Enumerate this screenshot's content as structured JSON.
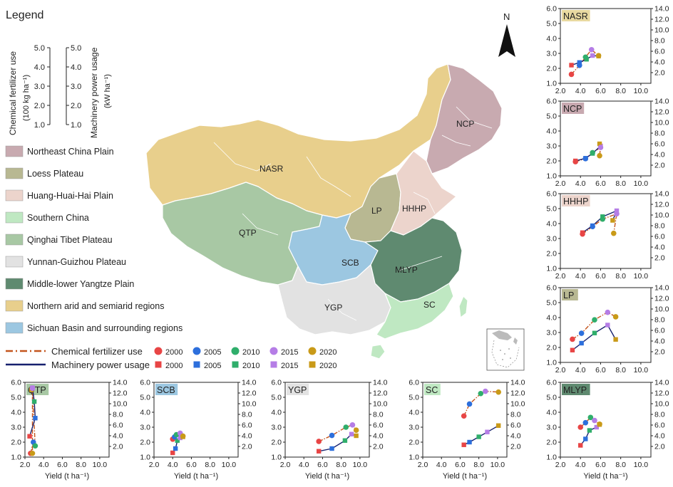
{
  "legend": {
    "title": "Legend",
    "fert_axis_label_1": "Chemical fertilizer use",
    "fert_axis_label_2": "(100 kg ha⁻¹)",
    "mach_axis_label_1": "Machinery power usage",
    "mach_axis_label_2": "(kW ha⁻¹)",
    "axis_ticks": [
      "5.0",
      "4.0",
      "3.0",
      "2.0",
      "1.0"
    ],
    "regions": [
      {
        "name": "Northeast China Plain",
        "color": "#c8aab0"
      },
      {
        "name": "Loess Plateau",
        "color": "#b8b892"
      },
      {
        "name": "Huang-Huai-Hai Plain",
        "color": "#ecd4cc"
      },
      {
        "name": "Southern China",
        "color": "#bfe8c2"
      },
      {
        "name": "Qinghai Tibet Plateau",
        "color": "#a8c8a4"
      },
      {
        "name": "Yunnan-Guizhou Plateau",
        "color": "#e2e2e2"
      },
      {
        "name": "Middle-lower Yangtze Plain",
        "color": "#5f8a70"
      },
      {
        "name": "Northern arid and semiarid regions",
        "color": "#e8cf8c"
      },
      {
        "name": "Sichuan Basin and surrounding regions",
        "color": "#9cc7e1"
      }
    ],
    "series_labels": {
      "fert": "Chemical fertilizer use",
      "mach": "Machinery power usage"
    },
    "years": [
      "2000",
      "2005",
      "2010",
      "2015",
      "2020"
    ],
    "year_colors": [
      "#e84545",
      "#2d6fdc",
      "#2fae6b",
      "#b57de6",
      "#c99a18"
    ],
    "fert_color": "#c4541c",
    "mach_color": "#16206e"
  },
  "map": {
    "north_label": "N",
    "region_labels": [
      "NASR",
      "NCP",
      "LP",
      "HHHP",
      "QTP",
      "SCB",
      "MLYP",
      "YGP",
      "SC"
    ]
  },
  "chart_data": [
    {
      "id": "NASR",
      "type": "line",
      "title": "NASR",
      "title_bg": "#e8d9a0",
      "xlim": [
        2.0,
        11.0
      ],
      "xticks": [
        "2.0",
        "4.0",
        "6.0",
        "8.0",
        "10.0"
      ],
      "xlabel": "",
      "ylim_left": [
        1.0,
        6.0
      ],
      "yticks_left": [
        "1.0",
        "2.0",
        "3.0",
        "4.0",
        "5.0",
        "6.0"
      ],
      "ylim_right": [
        0,
        14
      ],
      "yticks_right": [
        "2.0",
        "4.0",
        "6.0",
        "8.0",
        "10.0",
        "12.0",
        "14.0"
      ],
      "fert": [
        [
          3.1,
          1.6
        ],
        [
          3.9,
          2.2
        ],
        [
          4.5,
          2.75
        ],
        [
          5.1,
          3.25
        ],
        [
          5.8,
          2.85
        ]
      ],
      "mach": [
        [
          3.1,
          3.4
        ],
        [
          3.9,
          3.9
        ],
        [
          4.6,
          4.5
        ],
        [
          5.2,
          5.2
        ],
        [
          5.8,
          5.1
        ]
      ]
    },
    {
      "id": "NCP",
      "type": "line",
      "title": "NCP",
      "title_bg": "#c8a9b0",
      "xlim": [
        2.0,
        11.0
      ],
      "xticks": [
        "2.0",
        "4.0",
        "6.0",
        "8.0",
        "10.0"
      ],
      "xlabel": "",
      "ylim_left": [
        1.0,
        6.0
      ],
      "yticks_left": [
        "1.0",
        "2.0",
        "3.0",
        "4.0",
        "5.0",
        "6.0"
      ],
      "ylim_right": [
        0,
        14
      ],
      "yticks_right": [
        "2.0",
        "4.0",
        "6.0",
        "8.0",
        "10.0",
        "12.0",
        "14.0"
      ],
      "fert": [
        [
          3.5,
          1.95
        ],
        [
          4.5,
          2.15
        ],
        [
          5.2,
          2.55
        ],
        [
          6.0,
          2.9
        ],
        [
          5.9,
          2.35
        ]
      ],
      "mach": [
        [
          3.5,
          2.8
        ],
        [
          4.5,
          3.3
        ],
        [
          5.2,
          4.2
        ],
        [
          6.0,
          5.6
        ],
        [
          5.9,
          6.0
        ]
      ]
    },
    {
      "id": "HHHP",
      "type": "line",
      "title": "HHHP",
      "title_bg": "#ecd4cc",
      "xlim": [
        2.0,
        11.0
      ],
      "xticks": [
        "2.0",
        "4.0",
        "6.0",
        "8.0",
        "10.0"
      ],
      "xlabel": "",
      "ylim_left": [
        1.0,
        6.0
      ],
      "yticks_left": [
        "1.0",
        "2.0",
        "3.0",
        "4.0",
        "5.0",
        "6.0"
      ],
      "ylim_right": [
        0,
        14
      ],
      "yticks_right": [
        "2.0",
        "4.0",
        "6.0",
        "8.0",
        "10.0",
        "12.0",
        "14.0"
      ],
      "fert": [
        [
          4.2,
          3.3
        ],
        [
          5.2,
          3.8
        ],
        [
          6.2,
          4.3
        ],
        [
          7.6,
          4.65
        ],
        [
          7.3,
          3.35
        ]
      ],
      "mach": [
        [
          4.2,
          6.7
        ],
        [
          5.2,
          8.0
        ],
        [
          6.2,
          9.7
        ],
        [
          7.6,
          10.8
        ],
        [
          7.2,
          9.0
        ]
      ]
    },
    {
      "id": "LP",
      "type": "line",
      "title": "LP",
      "title_bg": "#b8b892",
      "xlim": [
        2.0,
        11.0
      ],
      "xticks": [
        "2.0",
        "4.0",
        "6.0",
        "8.0",
        "10.0"
      ],
      "xlabel": "",
      "ylim_left": [
        1.0,
        6.0
      ],
      "yticks_left": [
        "1.0",
        "2.0",
        "3.0",
        "4.0",
        "5.0",
        "6.0"
      ],
      "ylim_right": [
        0,
        14
      ],
      "yticks_right": [
        "2.0",
        "4.0",
        "6.0",
        "8.0",
        "10.0",
        "12.0",
        "14.0"
      ],
      "fert": [
        [
          3.2,
          2.55
        ],
        [
          4.1,
          2.95
        ],
        [
          5.4,
          3.85
        ],
        [
          6.7,
          4.35
        ],
        [
          7.5,
          4.05
        ]
      ],
      "mach": [
        [
          3.2,
          2.3
        ],
        [
          4.1,
          3.6
        ],
        [
          5.4,
          5.5
        ],
        [
          6.7,
          7.0
        ],
        [
          7.5,
          4.3
        ]
      ]
    },
    {
      "id": "QTP",
      "type": "line",
      "title": "QTP",
      "title_bg": "#a8c8a4",
      "xlim": [
        2.0,
        11.0
      ],
      "xticks": [
        "2.0",
        "4.0",
        "6.0",
        "8.0",
        "10.0"
      ],
      "xlabel": "Yield (t ha⁻¹)",
      "ylim_left": [
        1.0,
        6.0
      ],
      "yticks_left": [
        "1.0",
        "2.0",
        "3.0",
        "4.0",
        "5.0",
        "6.0"
      ],
      "ylim_right": [
        0,
        14
      ],
      "yticks_right": [
        "2.0",
        "4.0",
        "6.0",
        "8.0",
        "10.0",
        "12.0",
        "14.0"
      ],
      "fert": [
        [
          2.6,
          1.25
        ],
        [
          2.9,
          2.0
        ],
        [
          3.1,
          1.75
        ],
        [
          2.8,
          5.6
        ],
        [
          2.8,
          1.25
        ]
      ],
      "mach": [
        [
          2.5,
          3.9
        ],
        [
          3.1,
          7.3
        ],
        [
          3.0,
          10.4
        ],
        [
          2.8,
          13.0
        ],
        [
          2.7,
          12.6
        ]
      ]
    },
    {
      "id": "SCB",
      "type": "line",
      "title": "SCB",
      "title_bg": "#9cc7e1",
      "xlim": [
        2.0,
        11.0
      ],
      "xticks": [
        "2.0",
        "4.0",
        "6.0",
        "8.0",
        "10.0"
      ],
      "xlabel": "Yield (t ha⁻¹)",
      "ylim_left": [
        1.0,
        6.0
      ],
      "yticks_left": [
        "1.0",
        "2.0",
        "3.0",
        "4.0",
        "5.0",
        "6.0"
      ],
      "ylim_right": [
        0,
        14
      ],
      "yticks_right": [
        "2.0",
        "4.0",
        "6.0",
        "8.0",
        "10.0",
        "12.0",
        "14.0"
      ],
      "fert": [
        [
          4.0,
          2.2
        ],
        [
          4.2,
          2.35
        ],
        [
          4.4,
          2.5
        ],
        [
          4.8,
          2.6
        ],
        [
          5.1,
          2.4
        ]
      ],
      "mach": [
        [
          4.0,
          0.8
        ],
        [
          4.3,
          1.6
        ],
        [
          4.5,
          3.1
        ],
        [
          4.8,
          3.6
        ],
        [
          5.1,
          3.8
        ]
      ]
    },
    {
      "id": "YGP",
      "type": "line",
      "title": "YGP",
      "title_bg": "#e2e2e2",
      "xlim": [
        2.0,
        11.0
      ],
      "xticks": [
        "2.0",
        "4.0",
        "6.0",
        "8.0",
        "10.0"
      ],
      "xlabel": "Yield (t ha⁻¹)",
      "ylim_left": [
        1.0,
        6.0
      ],
      "yticks_left": [
        "1.0",
        "2.0",
        "3.0",
        "4.0",
        "5.0",
        "6.0"
      ],
      "ylim_right": [
        0,
        14
      ],
      "yticks_right": [
        "2.0",
        "4.0",
        "6.0",
        "8.0",
        "10.0",
        "12.0",
        "14.0"
      ],
      "fert": [
        [
          5.6,
          2.05
        ],
        [
          7.0,
          2.45
        ],
        [
          8.5,
          3.0
        ],
        [
          9.2,
          3.15
        ],
        [
          9.6,
          2.8
        ]
      ],
      "mach": [
        [
          5.6,
          1.1
        ],
        [
          7.0,
          1.6
        ],
        [
          8.4,
          3.1
        ],
        [
          9.1,
          4.3
        ],
        [
          9.6,
          4.0
        ]
      ]
    },
    {
      "id": "SC",
      "type": "line",
      "title": "SC",
      "title_bg": "#bfe8c2",
      "xlim": [
        2.0,
        11.0
      ],
      "xticks": [
        "2.0",
        "4.0",
        "6.0",
        "8.0",
        "10.0"
      ],
      "xlabel": "Yield (t ha⁻¹)",
      "ylim_left": [
        1.0,
        6.0
      ],
      "yticks_left": [
        "1.0",
        "2.0",
        "3.0",
        "4.0",
        "5.0",
        "6.0"
      ],
      "ylim_right": [
        0,
        14
      ],
      "yticks_right": [
        "2.0",
        "4.0",
        "6.0",
        "8.0",
        "10.0",
        "12.0",
        "14.0"
      ],
      "fert": [
        [
          6.4,
          3.75
        ],
        [
          7.0,
          4.55
        ],
        [
          8.2,
          5.25
        ],
        [
          8.7,
          5.4
        ],
        [
          10.1,
          5.35
        ]
      ],
      "mach": [
        [
          6.4,
          2.3
        ],
        [
          7.0,
          2.8
        ],
        [
          8.0,
          3.8
        ],
        [
          8.9,
          4.7
        ],
        [
          10.1,
          5.9
        ]
      ]
    },
    {
      "id": "MLYP",
      "type": "line",
      "title": "MLYP",
      "title_bg": "#5f8a70",
      "xlim": [
        2.0,
        11.0
      ],
      "xticks": [
        "2.0",
        "4.0",
        "6.0",
        "8.0",
        "10.0"
      ],
      "xlabel": "Yield (t ha⁻¹)",
      "ylim_left": [
        1.0,
        6.0
      ],
      "yticks_left": [
        "1.0",
        "2.0",
        "3.0",
        "4.0",
        "5.0",
        "6.0"
      ],
      "ylim_right": [
        0,
        14
      ],
      "yticks_right": [
        "2.0",
        "4.0",
        "6.0",
        "8.0",
        "10.0",
        "12.0",
        "14.0"
      ],
      "fert": [
        [
          4.0,
          3.0
        ],
        [
          4.5,
          3.3
        ],
        [
          5.0,
          3.65
        ],
        [
          5.4,
          3.45
        ],
        [
          5.9,
          3.2
        ]
      ],
      "mach": [
        [
          4.0,
          2.2
        ],
        [
          4.5,
          3.4
        ],
        [
          4.9,
          5.0
        ],
        [
          5.6,
          5.6
        ],
        [
          5.9,
          6.1
        ]
      ]
    }
  ]
}
